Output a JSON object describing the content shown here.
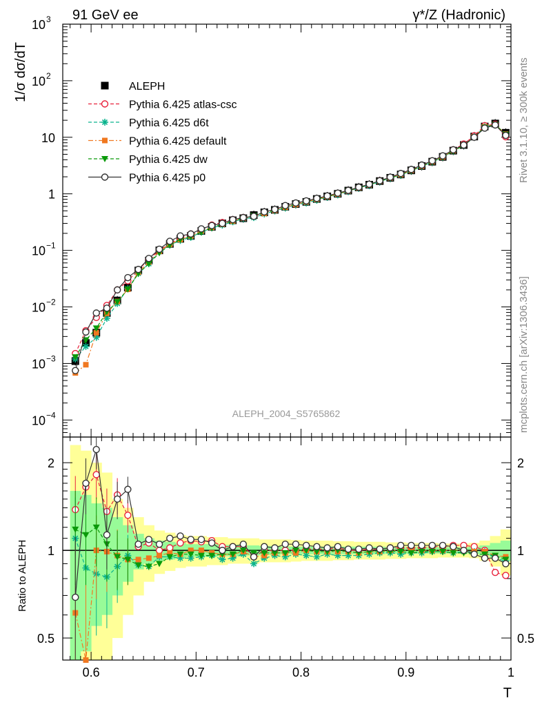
{
  "header": {
    "left": "91 GeV ee",
    "right": "γ*/Z (Hadronic)"
  },
  "side_labels": {
    "top": "Rivet 3.1.10, ≥ 300k events",
    "bottom": "mcplots.cern.ch [arXiv:1306.3436]"
  },
  "analysis_label": "ALEPH_2004_S5765862",
  "chart_data": [
    {
      "type": "scatter",
      "panel": "main",
      "ylabel": "1/σ  dσ/dT",
      "xlabel": "",
      "x_range": [
        0.573,
        1.0
      ],
      "ylim": [
        5e-05,
        1000
      ],
      "log_y": true,
      "y_tick_labels": [
        {
          "v": 1000,
          "label": "10",
          "sup": "3"
        },
        {
          "v": 100,
          "label": "10",
          "sup": "2"
        },
        {
          "v": 10,
          "label": "10",
          "sup": ""
        },
        {
          "v": 1,
          "label": "1",
          "sup": ""
        },
        {
          "v": 0.1,
          "label": "10",
          "sup": "−1"
        },
        {
          "v": 0.01,
          "label": "10",
          "sup": "−2"
        },
        {
          "v": 0.001,
          "label": "10",
          "sup": "−3"
        },
        {
          "v": 0.0001,
          "label": "10",
          "sup": "−4"
        }
      ],
      "legend_position": "upper-left",
      "x": [
        0.585,
        0.595,
        0.605,
        0.615,
        0.625,
        0.635,
        0.645,
        0.655,
        0.665,
        0.675,
        0.685,
        0.695,
        0.705,
        0.715,
        0.725,
        0.735,
        0.745,
        0.755,
        0.765,
        0.775,
        0.785,
        0.795,
        0.805,
        0.815,
        0.825,
        0.835,
        0.845,
        0.855,
        0.865,
        0.875,
        0.885,
        0.895,
        0.905,
        0.915,
        0.925,
        0.935,
        0.945,
        0.955,
        0.965,
        0.975,
        0.985,
        0.995
      ],
      "series": [
        {
          "name": "ALEPH",
          "color": "#000000",
          "marker": "square",
          "values": [
            0.0011,
            0.0023,
            0.0035,
            0.0078,
            0.013,
            0.022,
            0.044,
            0.066,
            0.1,
            0.13,
            0.16,
            0.18,
            0.22,
            0.26,
            0.3,
            0.34,
            0.37,
            0.42,
            0.47,
            0.52,
            0.59,
            0.66,
            0.72,
            0.81,
            0.9,
            1.0,
            1.14,
            1.3,
            1.45,
            1.68,
            1.92,
            2.2,
            2.6,
            3.1,
            3.7,
            4.5,
            5.8,
            7.3,
            10.3,
            15.5,
            17.5,
            12.0
          ]
        },
        {
          "name": "Pythia 6.425 atlas-csc",
          "color": "#e8203a",
          "marker": "circle-open",
          "line": "dashed",
          "values": [
            0.0015,
            0.0038,
            0.0065,
            0.0106,
            0.02,
            0.029,
            0.045,
            0.07,
            0.1,
            0.13,
            0.17,
            0.195,
            0.235,
            0.28,
            0.31,
            0.35,
            0.38,
            0.4,
            0.47,
            0.52,
            0.59,
            0.66,
            0.73,
            0.82,
            0.91,
            1.02,
            1.14,
            1.3,
            1.47,
            1.7,
            1.95,
            2.25,
            2.65,
            3.15,
            3.8,
            4.6,
            6.0,
            7.6,
            10.6,
            16.0,
            17.0,
            10.2
          ]
        },
        {
          "name": "Pythia 6.425 d6t",
          "color": "#0ab38d",
          "marker": "star",
          "line": "dashed",
          "values": [
            0.0012,
            0.002,
            0.0029,
            0.0063,
            0.0115,
            0.021,
            0.039,
            0.058,
            0.095,
            0.124,
            0.15,
            0.17,
            0.21,
            0.25,
            0.28,
            0.32,
            0.36,
            0.38,
            0.44,
            0.5,
            0.56,
            0.64,
            0.69,
            0.77,
            0.87,
            0.96,
            1.1,
            1.25,
            1.4,
            1.64,
            1.88,
            2.14,
            2.56,
            3.05,
            3.65,
            4.45,
            5.7,
            7.2,
            10.2,
            15.3,
            16.5,
            11.0
          ]
        },
        {
          "name": "Pythia 6.425 default",
          "color": "#f07820",
          "marker": "square-filled",
          "line": "dashdot",
          "values": [
            0.00068,
            0.00095,
            0.0035,
            0.0077,
            0.0125,
            0.0205,
            0.041,
            0.062,
            0.096,
            0.128,
            0.155,
            0.18,
            0.22,
            0.255,
            0.29,
            0.33,
            0.37,
            0.4,
            0.45,
            0.51,
            0.58,
            0.65,
            0.72,
            0.8,
            0.89,
            0.99,
            1.13,
            1.28,
            1.44,
            1.67,
            1.92,
            2.19,
            2.6,
            3.1,
            3.7,
            4.5,
            5.8,
            7.3,
            10.2,
            15.3,
            16.8,
            11.4
          ]
        },
        {
          "name": "Pythia 6.425 dw",
          "color": "#0a9a0a",
          "marker": "triangle-down",
          "line": "dashed",
          "values": [
            0.0013,
            0.0026,
            0.0042,
            0.0082,
            0.0123,
            0.0205,
            0.039,
            0.058,
            0.09,
            0.124,
            0.155,
            0.175,
            0.21,
            0.25,
            0.29,
            0.33,
            0.37,
            0.41,
            0.46,
            0.51,
            0.58,
            0.66,
            0.72,
            0.8,
            0.89,
            1.0,
            1.13,
            1.28,
            1.44,
            1.66,
            1.9,
            2.17,
            2.56,
            3.06,
            3.67,
            4.45,
            5.7,
            7.15,
            10.0,
            15.0,
            16.8,
            11.2
          ]
        },
        {
          "name": "Pythia 6.425 p0",
          "color": "#333333",
          "marker": "circle-open",
          "line": "solid",
          "values": [
            0.00075,
            0.0036,
            0.0078,
            0.0095,
            0.02,
            0.033,
            0.046,
            0.072,
            0.105,
            0.145,
            0.18,
            0.195,
            0.24,
            0.275,
            0.3,
            0.35,
            0.38,
            0.4,
            0.48,
            0.53,
            0.62,
            0.69,
            0.75,
            0.83,
            0.92,
            1.03,
            1.15,
            1.31,
            1.48,
            1.7,
            1.97,
            2.29,
            2.7,
            3.23,
            3.84,
            4.7,
            6.0,
            7.3,
            10.0,
            14.5,
            16.5,
            10.8
          ]
        }
      ]
    },
    {
      "type": "scatter",
      "panel": "ratio",
      "ylabel": "Ratio to ALEPH",
      "xlabel": "T",
      "x_range": [
        0.573,
        1.0
      ],
      "ylim": [
        0.42,
        2.45
      ],
      "log_y": true,
      "x_tick_labels": [
        {
          "v": 0.6,
          "label": "0.6"
        },
        {
          "v": 0.7,
          "label": "0.7"
        },
        {
          "v": 0.8,
          "label": "0.8"
        },
        {
          "v": 0.9,
          "label": "0.9"
        },
        {
          "v": 1.0,
          "label": "1"
        }
      ],
      "y_tick_labels": [
        {
          "v": 2,
          "label": "2"
        },
        {
          "v": 1,
          "label": "1"
        },
        {
          "v": 0.5,
          "label": "0.5"
        }
      ],
      "band_colors": {
        "inner": "#98fb98",
        "outer": "#ffff98"
      },
      "bands": {
        "inner_half": [
          0.6,
          0.55,
          0.45,
          0.4,
          0.3,
          0.22,
          0.14,
          0.1,
          0.08,
          0.07,
          0.06,
          0.05,
          0.05,
          0.05,
          0.045,
          0.045,
          0.04,
          0.04,
          0.035,
          0.035,
          0.03,
          0.03,
          0.03,
          0.03,
          0.03,
          0.03,
          0.03,
          0.03,
          0.03,
          0.03,
          0.025,
          0.025,
          0.025,
          0.025,
          0.025,
          0.025,
          0.025,
          0.025,
          0.03,
          0.04,
          0.06,
          0.08
        ],
        "outer_half": [
          1.3,
          1.2,
          1.0,
          0.85,
          0.5,
          0.4,
          0.3,
          0.22,
          0.17,
          0.15,
          0.13,
          0.12,
          0.12,
          0.11,
          0.11,
          0.1,
          0.1,
          0.1,
          0.09,
          0.09,
          0.09,
          0.085,
          0.08,
          0.08,
          0.08,
          0.075,
          0.075,
          0.07,
          0.07,
          0.07,
          0.065,
          0.065,
          0.06,
          0.06,
          0.06,
          0.055,
          0.055,
          0.055,
          0.06,
          0.08,
          0.12,
          0.18
        ]
      },
      "series": [
        {
          "name": "Pythia 6.425 atlas-csc",
          "color": "#e8203a",
          "values": [
            1.38,
            1.65,
            1.82,
            1.36,
            1.55,
            1.32,
            1.03,
            1.06,
            1.0,
            1.02,
            1.06,
            1.08,
            1.07,
            1.08,
            1.03,
            1.03,
            1.03,
            0.95,
            1.0,
            1.0,
            1.0,
            1.0,
            1.01,
            1.01,
            1.01,
            1.02,
            1.0,
            1.0,
            1.01,
            1.01,
            1.02,
            1.02,
            1.02,
            1.02,
            1.03,
            1.03,
            1.04,
            1.04,
            1.03,
            1.0,
            0.84,
            0.82
          ]
        },
        {
          "name": "Pythia 6.425 d6t",
          "color": "#0ab38d",
          "values": [
            1.1,
            0.87,
            0.83,
            0.81,
            0.88,
            0.96,
            0.89,
            0.88,
            0.95,
            0.95,
            0.94,
            0.94,
            0.95,
            0.96,
            0.93,
            0.94,
            0.97,
            0.9,
            0.94,
            0.96,
            0.95,
            0.97,
            0.96,
            0.95,
            0.97,
            0.96,
            0.96,
            0.96,
            0.97,
            0.98,
            0.98,
            0.97,
            0.98,
            0.98,
            0.99,
            0.99,
            0.98,
            0.99,
            0.99,
            0.99,
            0.94,
            0.92
          ]
        },
        {
          "name": "Pythia 6.425 default",
          "color": "#f07820",
          "values": [
            0.61,
            0.41,
            1.0,
            0.99,
            0.96,
            0.93,
            0.93,
            0.94,
            0.96,
            0.98,
            0.97,
            1.0,
            1.0,
            0.98,
            0.97,
            0.97,
            0.99,
            0.95,
            0.96,
            0.98,
            0.98,
            0.98,
            1.0,
            0.99,
            0.99,
            0.99,
            0.99,
            0.98,
            0.99,
            0.99,
            1.0,
            1.0,
            1.0,
            1.0,
            1.0,
            1.0,
            1.0,
            1.0,
            0.99,
            0.99,
            0.96,
            0.95
          ]
        },
        {
          "name": "Pythia 6.425 dw",
          "color": "#0a9a0a",
          "values": [
            1.18,
            1.13,
            1.2,
            1.05,
            0.95,
            0.93,
            0.89,
            0.88,
            0.9,
            0.95,
            0.97,
            0.97,
            0.96,
            0.96,
            0.97,
            0.97,
            1.0,
            0.98,
            0.98,
            0.98,
            0.98,
            1.0,
            1.0,
            0.99,
            0.99,
            1.0,
            0.99,
            0.98,
            0.99,
            0.99,
            0.99,
            0.99,
            0.98,
            0.99,
            0.99,
            0.99,
            0.98,
            0.98,
            0.97,
            0.97,
            0.96,
            0.93
          ]
        },
        {
          "name": "Pythia 6.425 p0",
          "color": "#333333",
          "values": [
            0.69,
            1.7,
            2.22,
            1.13,
            1.5,
            1.62,
            1.05,
            1.09,
            1.05,
            1.1,
            1.12,
            1.09,
            1.09,
            1.06,
            1.0,
            1.03,
            1.05,
            0.95,
            1.03,
            1.02,
            1.05,
            1.05,
            1.04,
            1.03,
            1.02,
            1.03,
            1.01,
            1.01,
            1.02,
            1.01,
            1.02,
            1.04,
            1.04,
            1.04,
            1.04,
            1.04,
            1.03,
            1.0,
            0.97,
            0.94,
            0.94,
            0.9
          ]
        }
      ]
    }
  ]
}
